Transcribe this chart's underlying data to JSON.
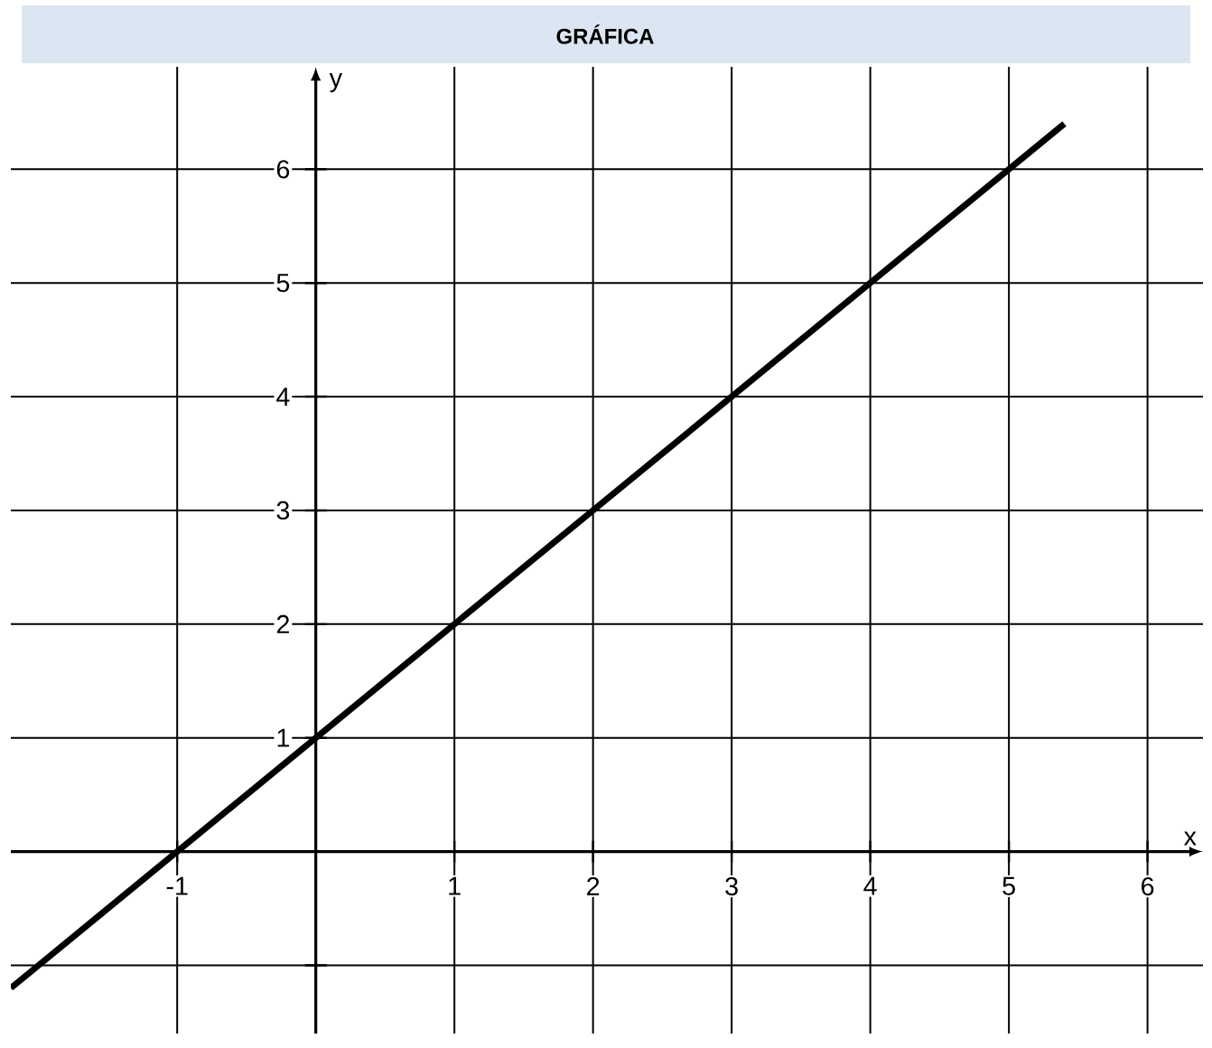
{
  "chart_data": {
    "type": "line",
    "title": "GRÁFICA",
    "xlabel": "x",
    "ylabel": "y",
    "x": [
      -2.2,
      5.4
    ],
    "series": [
      {
        "color": "#000000",
        "values": [
          -1.2,
          6.4
        ]
      }
    ],
    "xlim": [
      -2.2,
      6.4
    ],
    "ylim": [
      -1.6,
      6.9
    ],
    "xticks": [
      -1,
      1,
      2,
      3,
      4,
      5,
      6
    ],
    "yticks": [
      {
        "value": -1,
        "label": null
      },
      1,
      2,
      3,
      4,
      5,
      6
    ],
    "grid": true,
    "marker": "none",
    "line_style": "solid"
  }
}
